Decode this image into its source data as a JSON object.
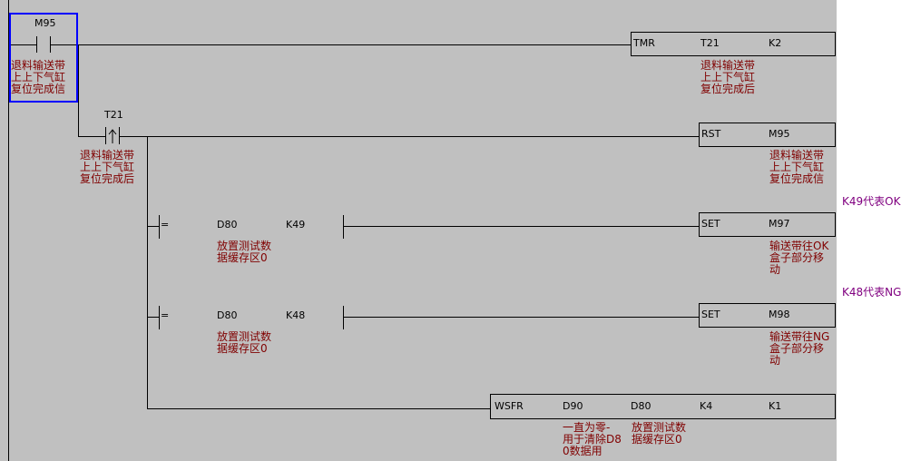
{
  "colors": {
    "background": "#c0c0c0",
    "comment": "#800000",
    "note": "#800080",
    "cursor": "#0000ff"
  },
  "rungs": [
    {
      "contact": {
        "device": "M95",
        "type": "normally-open",
        "comment": "退料输送带\n上上下气缸\n复位完成信"
      },
      "instruction": {
        "op": "TMR",
        "args": [
          "T21",
          "K2"
        ],
        "comment": "退料输送带\n上上下气缸\n复位完成后"
      }
    },
    {
      "contact": {
        "device": "T21",
        "type": "rising-edge",
        "comment": "退料输送带\n上上下气缸\n复位完成后"
      },
      "instruction": {
        "op": "RST",
        "args": [
          "M95"
        ],
        "comment": "退料输送带\n上上下气缸\n复位完成信"
      }
    },
    {
      "compare": {
        "op": "=",
        "s1": "D80",
        "s2": "K49",
        "comment": "放置测试数\n据缓存区0"
      },
      "instruction": {
        "op": "SET",
        "args": [
          "M97"
        ],
        "comment": "输送带往OK\n盒子部分移\n动"
      },
      "note": "K49代表OK"
    },
    {
      "compare": {
        "op": "=",
        "s1": "D80",
        "s2": "K48",
        "comment": "放置测试数\n据缓存区0"
      },
      "instruction": {
        "op": "SET",
        "args": [
          "M98"
        ],
        "comment": "输送带往NG\n盒子部分移\n动"
      },
      "note": "K48代表NG"
    },
    {
      "instruction": {
        "op": "WSFR",
        "args": [
          "D90",
          "D80",
          "K4",
          "K1"
        ],
        "comments": [
          "一直为零-\n用于清除D8\n0数据用",
          "放置测试数\n据缓存区0"
        ]
      }
    }
  ]
}
